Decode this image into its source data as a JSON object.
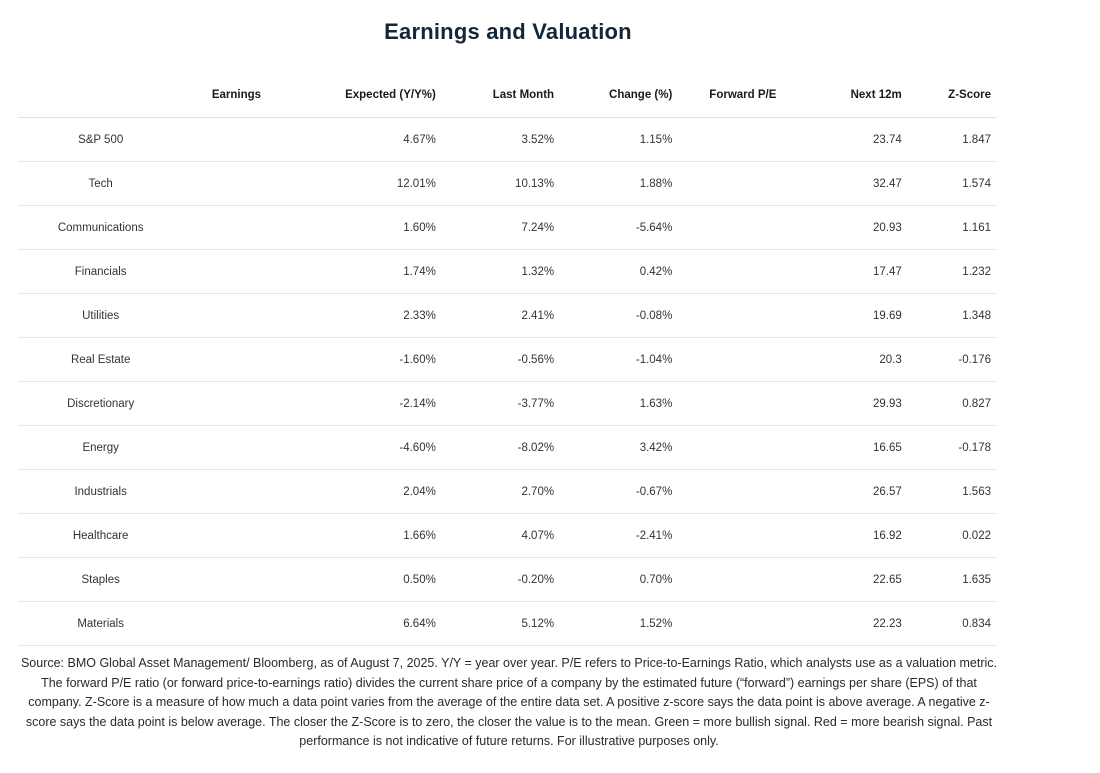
{
  "title": "Earnings and Valuation",
  "headers": {
    "earnings": "Earnings",
    "expected": "Expected (Y/Y%)",
    "last_month": "Last Month",
    "change": "Change (%)",
    "forward_pe": "Forward P/E",
    "next_12m": "Next 12m",
    "zscore": "Z-Score"
  },
  "rows": [
    {
      "sector": "S&P 500",
      "expected": "4.67%",
      "last_month": "3.52%",
      "change": "1.15%",
      "next_12m": "23.74",
      "zscore": "1.847"
    },
    {
      "sector": "Tech",
      "expected": "12.01%",
      "last_month": "10.13%",
      "change": "1.88%",
      "next_12m": "32.47",
      "zscore": "1.574"
    },
    {
      "sector": "Communications",
      "expected": "1.60%",
      "last_month": "7.24%",
      "change": "-5.64%",
      "next_12m": "20.93",
      "zscore": "1.161"
    },
    {
      "sector": "Financials",
      "expected": "1.74%",
      "last_month": "1.32%",
      "change": "0.42%",
      "next_12m": "17.47",
      "zscore": "1.232"
    },
    {
      "sector": "Utilities",
      "expected": "2.33%",
      "last_month": "2.41%",
      "change": "-0.08%",
      "next_12m": "19.69",
      "zscore": "1.348"
    },
    {
      "sector": "Real Estate",
      "expected": "-1.60%",
      "last_month": "-0.56%",
      "change": "-1.04%",
      "next_12m": "20.3",
      "zscore": "-0.176"
    },
    {
      "sector": "Discretionary",
      "expected": "-2.14%",
      "last_month": "-3.77%",
      "change": "1.63%",
      "next_12m": "29.93",
      "zscore": "0.827"
    },
    {
      "sector": "Energy",
      "expected": "-4.60%",
      "last_month": "-8.02%",
      "change": "3.42%",
      "next_12m": "16.65",
      "zscore": "-0.178"
    },
    {
      "sector": "Industrials",
      "expected": "2.04%",
      "last_month": "2.70%",
      "change": "-0.67%",
      "next_12m": "26.57",
      "zscore": "1.563"
    },
    {
      "sector": "Healthcare",
      "expected": "1.66%",
      "last_month": "4.07%",
      "change": "-2.41%",
      "next_12m": "16.92",
      "zscore": "0.022"
    },
    {
      "sector": "Staples",
      "expected": "0.50%",
      "last_month": "-0.20%",
      "change": "0.70%",
      "next_12m": "22.65",
      "zscore": "1.635"
    },
    {
      "sector": "Materials",
      "expected": "6.64%",
      "last_month": "5.12%",
      "change": "1.52%",
      "next_12m": "22.23",
      "zscore": "0.834"
    }
  ],
  "footnote": "Source: BMO Global Asset Management/ Bloomberg, as of August 7, 2025. Y/Y = year over year. P/E refers to Price-to-Earnings Ratio, which analysts use as a valuation metric. The forward P/E ratio (or forward price-to-earnings ratio) divides the current share price of a company by the estimated future (“forward”) earnings per share (EPS) of that company. Z-Score is a measure of how much a data point varies from the average of the entire data set. A positive z-score says the data point is above average. A negative z-score says the data point is below average. The closer the Z-Score is to zero, the closer the value is to the mean. Green = more bullish signal. Red = more bearish signal. Past performance is not indicative of future returns. For illustrative purposes only."
}
